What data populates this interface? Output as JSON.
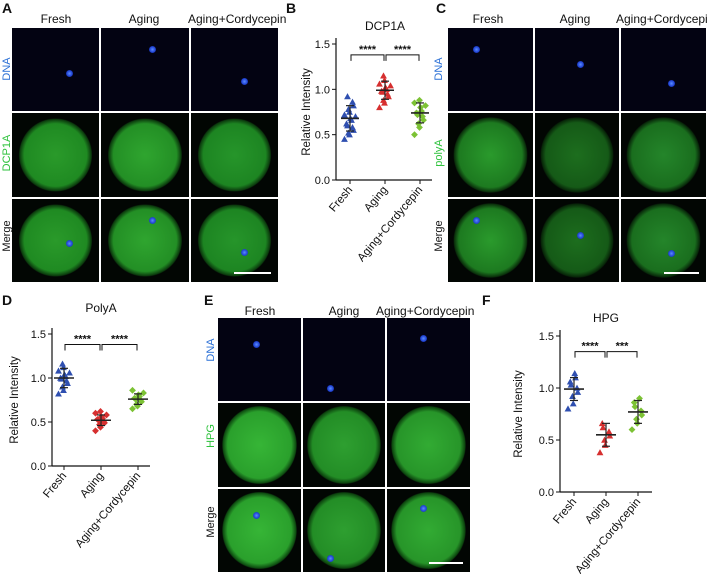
{
  "panels": {
    "A": {
      "letter": "A",
      "columns": [
        "Fresh",
        "Aging",
        "Aging+Cordycepin"
      ],
      "rows": [
        "DNA",
        "DCP1A",
        "Merge"
      ],
      "row_colors": [
        "#2a6fd6",
        "#2ec23c",
        "#111111"
      ]
    },
    "C": {
      "letter": "C",
      "columns": [
        "Fresh",
        "Aging",
        "Aging+Cordycepin"
      ],
      "rows": [
        "DNA",
        "polyA",
        "Merge"
      ],
      "row_colors": [
        "#2a6fd6",
        "#2ec23c",
        "#111111"
      ]
    },
    "E": {
      "letter": "E",
      "columns": [
        "Fresh",
        "Aging",
        "Aging+Cordycepin"
      ],
      "rows": [
        "DNA",
        "HPG",
        "Merge"
      ],
      "row_colors": [
        "#2a6fd6",
        "#2ec23c",
        "#111111"
      ]
    }
  },
  "chart_data": [
    {
      "letter": "B",
      "type": "scatter",
      "title": "DCP1A",
      "ylabel": "Relative Intensity",
      "categories": [
        "Fresh",
        "Aging",
        "Aging+Cordycepin"
      ],
      "yticks": [
        "0.0",
        "0.5",
        "1.0",
        "1.5"
      ],
      "ylim": [
        0,
        1.5
      ],
      "colors": [
        "#2f4fb0",
        "#d62f2f",
        "#7cc234"
      ],
      "markers": [
        "triangle",
        "triangle",
        "diamond"
      ],
      "means": [
        0.68,
        0.99,
        0.74
      ],
      "sds": [
        0.14,
        0.1,
        0.11
      ],
      "points": [
        [
          0.45,
          0.5,
          0.52,
          0.55,
          0.58,
          0.6,
          0.62,
          0.66,
          0.68,
          0.7,
          0.72,
          0.75,
          0.78,
          0.82,
          0.86,
          0.92
        ],
        [
          0.8,
          0.85,
          0.88,
          0.92,
          0.95,
          0.97,
          0.98,
          1.0,
          1.02,
          1.04,
          1.06,
          1.1,
          1.15
        ],
        [
          0.5,
          0.58,
          0.62,
          0.66,
          0.7,
          0.72,
          0.74,
          0.76,
          0.8,
          0.82,
          0.85,
          0.88
        ]
      ],
      "significance": [
        {
          "from": 0,
          "to": 1,
          "label": "****",
          "level": 1.38
        },
        {
          "from": 1,
          "to": 2,
          "label": "****",
          "level": 1.38
        }
      ]
    },
    {
      "letter": "D",
      "type": "scatter",
      "title": "PolyA",
      "ylabel": "Relative Intensity",
      "categories": [
        "Fresh",
        "Aging",
        "Aging+Cordycepin"
      ],
      "yticks": [
        "0.0",
        "0.5",
        "1.0",
        "1.5"
      ],
      "ylim": [
        0,
        1.5
      ],
      "colors": [
        "#2f4fb0",
        "#d62f2f",
        "#7cc234"
      ],
      "markers": [
        "triangle",
        "diamond",
        "diamond"
      ],
      "means": [
        1.0,
        0.52,
        0.76
      ],
      "sds": [
        0.11,
        0.06,
        0.06
      ],
      "points": [
        [
          0.82,
          0.86,
          0.9,
          0.94,
          0.97,
          0.99,
          1.0,
          1.02,
          1.04,
          1.06,
          1.08,
          1.12,
          1.16
        ],
        [
          0.4,
          0.44,
          0.47,
          0.49,
          0.51,
          0.52,
          0.53,
          0.54,
          0.56,
          0.58,
          0.6,
          0.62
        ],
        [
          0.65,
          0.68,
          0.7,
          0.73,
          0.75,
          0.76,
          0.77,
          0.79,
          0.81,
          0.83,
          0.86
        ]
      ],
      "significance": [
        {
          "from": 0,
          "to": 1,
          "label": "****",
          "level": 1.38
        },
        {
          "from": 1,
          "to": 2,
          "label": "****",
          "level": 1.38
        }
      ]
    },
    {
      "letter": "F",
      "type": "scatter",
      "title": "HPG",
      "ylabel": "Relative Intensity",
      "categories": [
        "Fresh",
        "Aging",
        "Aging+Cordycepin"
      ],
      "yticks": [
        "0.0",
        "0.5",
        "1.0",
        "1.5"
      ],
      "ylim": [
        0,
        1.5
      ],
      "colors": [
        "#2f4fb0",
        "#d62f2f",
        "#7cc234"
      ],
      "markers": [
        "triangle",
        "triangle",
        "diamond"
      ],
      "means": [
        0.99,
        0.55,
        0.77
      ],
      "sds": [
        0.11,
        0.11,
        0.11
      ],
      "points": [
        [
          0.8,
          0.85,
          0.92,
          0.96,
          1.0,
          1.03,
          1.06,
          1.1,
          1.14
        ],
        [
          0.38,
          0.45,
          0.5,
          0.54,
          0.58,
          0.62,
          0.66
        ],
        [
          0.6,
          0.66,
          0.7,
          0.74,
          0.78,
          0.82,
          0.86,
          0.9
        ]
      ],
      "significance": [
        {
          "from": 0,
          "to": 1,
          "label": "****",
          "level": 1.35
        },
        {
          "from": 1,
          "to": 2,
          "label": "***",
          "level": 1.35
        }
      ]
    }
  ]
}
